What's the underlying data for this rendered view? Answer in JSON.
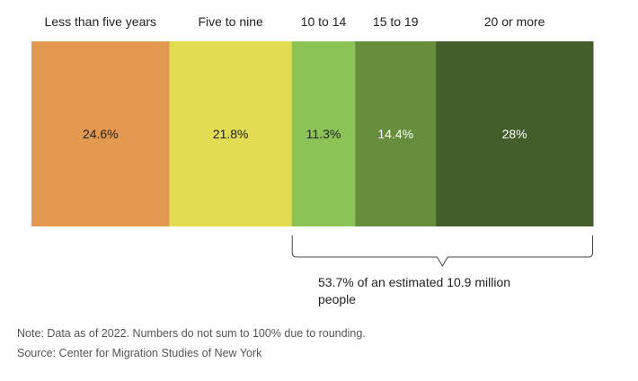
{
  "chart_data": {
    "type": "bar",
    "orientation": "horizontal-stacked",
    "categories": [
      "Less than five years",
      "Five to nine",
      "10 to 14",
      "15 to 19",
      "20 or more"
    ],
    "values": [
      24.6,
      21.8,
      11.3,
      14.4,
      28
    ],
    "value_labels": [
      "24.6%",
      "21.8%",
      "11.3%",
      "14.4%",
      "28%"
    ],
    "colors": [
      "#E3994F",
      "#E2DC52",
      "#8BC357",
      "#668E3C",
      "#445E2B"
    ],
    "label_colors": [
      "#222222",
      "#222222",
      "#222222",
      "#ffffff",
      "#ffffff"
    ],
    "bracket": {
      "from_category": "10 to 14",
      "to_category": "20 or more",
      "text_lines": [
        "53.7% of an estimated 10.9 million",
        "people"
      ]
    }
  },
  "note": "Note: Data as of 2022. Numbers do not sum to 100% due to rounding.",
  "source": "Source: Center for Migration Studies of New York"
}
